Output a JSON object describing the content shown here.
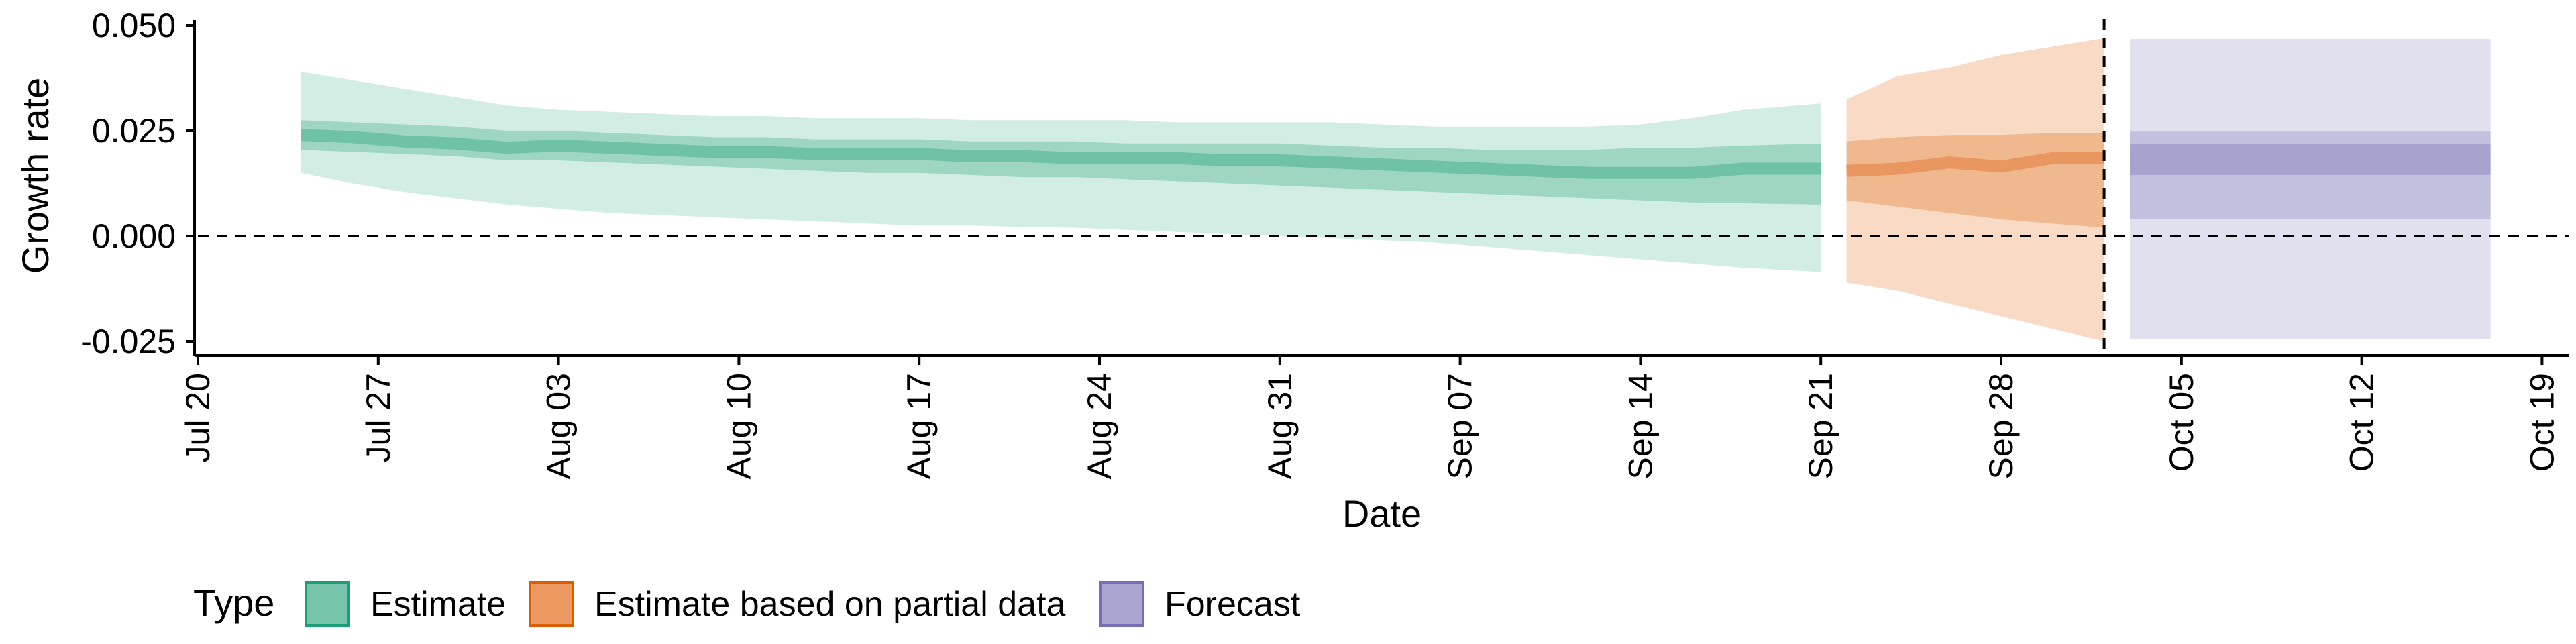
{
  "chart_data": {
    "type": "area",
    "title": "",
    "xlabel": "Date",
    "ylabel": "Growth rate",
    "x_ticks": [
      "Jul 20",
      "Jul 27",
      "Aug 03",
      "Aug 10",
      "Aug 17",
      "Aug 24",
      "Aug 31",
      "Sep 07",
      "Sep 14",
      "Sep 21",
      "Sep 28",
      "Oct 05",
      "Oct 12",
      "Oct 19"
    ],
    "y_ticks": [
      "-0.025",
      "0.000",
      "0.025",
      "0.050"
    ],
    "ylim": [
      -0.028,
      0.05
    ],
    "xlim": [
      "2020-07-20",
      "2020-10-20"
    ],
    "grid": false,
    "reference_lines": [
      {
        "orientation": "horizontal",
        "value": 0.0,
        "style": "dashed"
      },
      {
        "orientation": "vertical",
        "value": "2020-10-02",
        "style": "dashed"
      }
    ],
    "legend": {
      "title": "Type",
      "position": "bottom-left",
      "entries": [
        {
          "label": "Estimate",
          "color": "#1b9e77"
        },
        {
          "label": "Estimate based on partial data",
          "color": "#d95f02"
        },
        {
          "label": "Forecast",
          "color": "#7570b3"
        }
      ]
    },
    "series": [
      {
        "name": "Estimate",
        "color": "#1b9e77",
        "x": [
          "2020-07-24",
          "2020-07-26",
          "2020-07-28",
          "2020-07-30",
          "2020-08-01",
          "2020-08-03",
          "2020-08-05",
          "2020-08-07",
          "2020-08-09",
          "2020-08-11",
          "2020-08-13",
          "2020-08-15",
          "2020-08-17",
          "2020-08-19",
          "2020-08-21",
          "2020-08-23",
          "2020-08-25",
          "2020-08-27",
          "2020-08-29",
          "2020-08-31",
          "2020-09-02",
          "2020-09-04",
          "2020-09-06",
          "2020-09-08",
          "2020-09-10",
          "2020-09-12",
          "2020-09-14",
          "2020-09-16",
          "2020-09-18",
          "2020-09-21"
        ],
        "median": [
          0.024,
          0.0235,
          0.0225,
          0.022,
          0.021,
          0.0215,
          0.021,
          0.0205,
          0.02,
          0.02,
          0.0195,
          0.0195,
          0.0195,
          0.019,
          0.019,
          0.0185,
          0.0185,
          0.0185,
          0.018,
          0.018,
          0.0175,
          0.017,
          0.0165,
          0.016,
          0.0155,
          0.015,
          0.015,
          0.015,
          0.016,
          0.016
        ],
        "lower_50": [
          0.0205,
          0.02,
          0.0195,
          0.019,
          0.018,
          0.018,
          0.0175,
          0.017,
          0.0165,
          0.016,
          0.0155,
          0.015,
          0.015,
          0.0145,
          0.014,
          0.014,
          0.0135,
          0.013,
          0.0125,
          0.012,
          0.0115,
          0.011,
          0.0105,
          0.01,
          0.0095,
          0.009,
          0.0085,
          0.008,
          0.0078,
          0.0075
        ],
        "upper_50": [
          0.0275,
          0.027,
          0.0265,
          0.026,
          0.025,
          0.025,
          0.0245,
          0.024,
          0.0235,
          0.0235,
          0.023,
          0.023,
          0.023,
          0.0225,
          0.0225,
          0.0225,
          0.022,
          0.022,
          0.022,
          0.022,
          0.0215,
          0.021,
          0.021,
          0.0205,
          0.0205,
          0.0205,
          0.021,
          0.021,
          0.0215,
          0.022
        ],
        "lower_90": [
          0.015,
          0.0125,
          0.0105,
          0.009,
          0.0075,
          0.0065,
          0.0055,
          0.005,
          0.0045,
          0.004,
          0.0035,
          0.003,
          0.0025,
          0.0025,
          0.0022,
          0.002,
          0.0015,
          0.001,
          0.0005,
          0.0,
          -0.0005,
          -0.001,
          -0.0015,
          -0.0025,
          -0.0035,
          -0.0045,
          -0.0055,
          -0.0065,
          -0.0075,
          -0.0085
        ],
        "upper_90": [
          0.039,
          0.037,
          0.035,
          0.033,
          0.031,
          0.03,
          0.0295,
          0.029,
          0.0285,
          0.0285,
          0.028,
          0.028,
          0.028,
          0.0275,
          0.0275,
          0.0275,
          0.0275,
          0.027,
          0.027,
          0.027,
          0.027,
          0.0265,
          0.026,
          0.026,
          0.026,
          0.026,
          0.0265,
          0.028,
          0.03,
          0.0315
        ]
      },
      {
        "name": "Estimate based on partial data",
        "color": "#d95f02",
        "x": [
          "2020-09-22",
          "2020-09-24",
          "2020-09-26",
          "2020-09-28",
          "2020-09-30",
          "2020-10-02"
        ],
        "median": [
          0.0155,
          0.016,
          0.0175,
          0.0165,
          0.0185,
          0.0185
        ],
        "lower_50": [
          0.0085,
          0.007,
          0.0055,
          0.004,
          0.003,
          0.002
        ],
        "upper_50": [
          0.0225,
          0.0235,
          0.024,
          0.024,
          0.0245,
          0.0245
        ],
        "lower_90": [
          -0.011,
          -0.013,
          -0.016,
          -0.019,
          -0.022,
          -0.025
        ],
        "upper_90": [
          0.0325,
          0.038,
          0.04,
          0.043,
          0.045,
          0.047
        ]
      },
      {
        "name": "Forecast",
        "color": "#7570b3",
        "x": [
          "2020-10-03",
          "2020-10-17"
        ],
        "median": [
          0.0183,
          0.0183
        ],
        "lower_50": [
          0.0145,
          0.0145
        ],
        "upper_50": [
          0.0218,
          0.0218
        ],
        "lower_90": [
          0.004,
          0.004
        ],
        "upper_90": [
          0.0248,
          0.0248
        ],
        "lower_outer": [
          -0.0245,
          -0.0245
        ],
        "upper_outer": [
          0.0468,
          0.0468
        ]
      }
    ]
  }
}
